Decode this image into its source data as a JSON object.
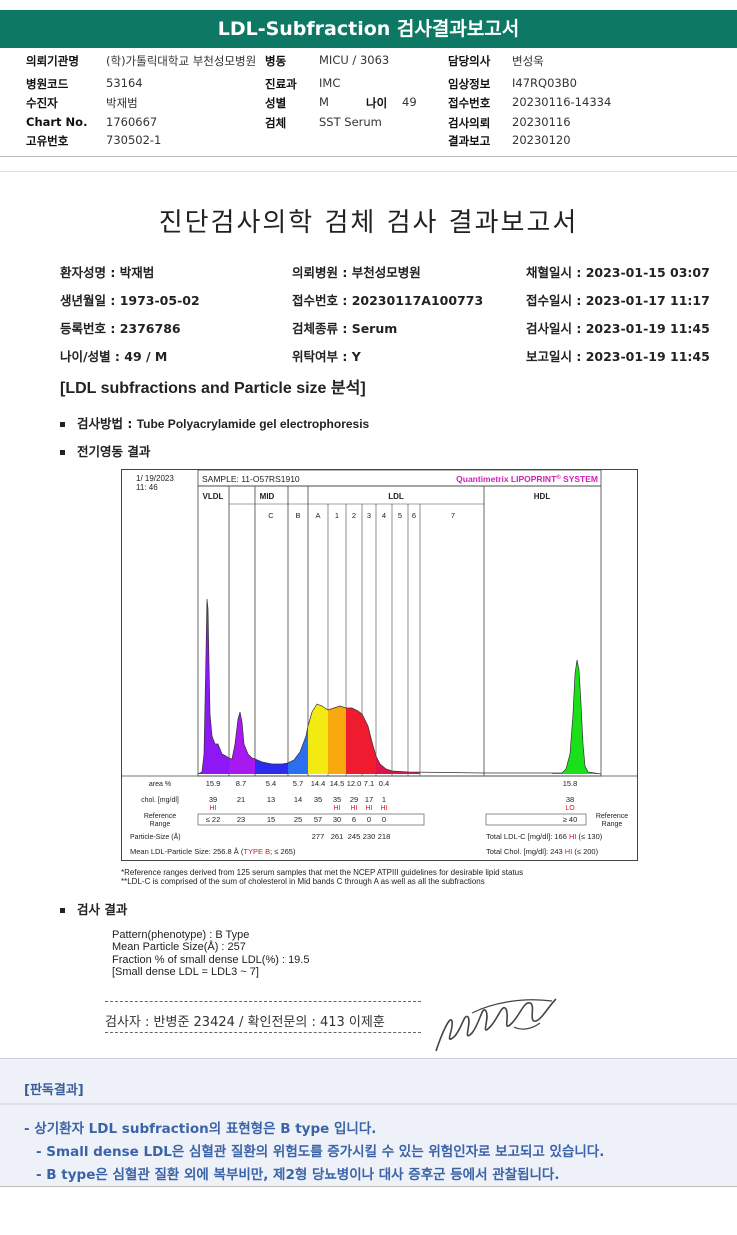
{
  "title": "LDL-Subfraction 검사결과보고서",
  "header": {
    "rows": [
      [
        {
          "l": "의뢰기관명",
          "v": "(학)가톨릭대학교 부천성모병원"
        },
        {
          "l": "병동",
          "v": "MICU / 3063"
        },
        {
          "l": "담당의사",
          "v": "변성욱"
        }
      ],
      [
        {
          "l": "병원코드",
          "v": "53164"
        },
        {
          "l": "진료과",
          "v": "IMC"
        },
        {
          "l": "임상정보",
          "v": "I47RQ03B0"
        }
      ],
      [
        {
          "l": "수진자",
          "v": "박재범"
        },
        {
          "l": "성별",
          "v": "M"
        },
        {
          "l": "나이",
          "v": "49"
        },
        {
          "l": "접수번호",
          "v": "20230116-14334"
        }
      ],
      [
        {
          "l": "Chart No.",
          "v": "1760667"
        },
        {
          "l": "검체",
          "v": "SST Serum"
        },
        {
          "l": "검사의뢰",
          "v": "20230116"
        }
      ],
      [
        {
          "l": "고유번호",
          "v": "730502-1"
        },
        {
          "l": "결과보고",
          "v": "20230120"
        }
      ]
    ]
  },
  "report": {
    "title": "진단검사의학 검체 검사 결과보고서",
    "patient": [
      [
        "환자성명 : 박재범",
        "의뢰병원 : 부천성모병원",
        "채혈일시 : 2023-01-15 03:07"
      ],
      [
        "생년월일 : 1973-05-02",
        "접수번호 : 20230117A100773",
        "접수일시 : 2023-01-17 11:17"
      ],
      [
        "등록번호 : 2376786",
        "검체종류 : Serum",
        "검사일시 : 2023-01-19 11:45"
      ],
      [
        "나이/성별 : 49 / M",
        "위탁여부 : Y",
        "보고일시 : 2023-01-19 11:45"
      ]
    ],
    "section_title": "[LDL subfractions and Particle size 분석]",
    "method_label": "검사방법 : ",
    "method_value": "Tube Polyacrylamide gel electrophoresis",
    "electro_label": "전기영동 결과",
    "result_label": "검사 결과",
    "results": [
      "Pattern(phenotype) : B Type",
      "Mean Particle Size(Å) : 257",
      "Fraction % of small dense LDL(%) : 19.5",
      "[Small dense LDL = LDL3 ~ 7]"
    ],
    "inspector": "검사자 : 반병준  23424  /  확인전문의 : 413  이제훈",
    "footnotes": [
      "*Reference ranges derived from 125 serum samples that met the NCEP ATPIII guidelines for desirable lipid status",
      "**LDL-C is comprised of the sum of cholesterol in Mid bands C through A as well as all the subfractions"
    ]
  },
  "chart_data": {
    "type": "area",
    "date": "1/ 19/2023",
    "time": "11: 46",
    "sample": "SAMPLE:   11-O57RS1910",
    "brand": "Quantimetrix LIPOPRINT",
    "brand_sup": "®",
    "brand_suffix": " SYSTEM",
    "groups": [
      "VLDL",
      "MID",
      "LDL",
      "HDL"
    ],
    "bands": [
      "C",
      "B",
      "A",
      "1",
      "2",
      "3",
      "4",
      "5",
      "6",
      "7"
    ],
    "row_labels": {
      "area": "area %",
      "chol": "chol. [mg/dl]",
      "ref": "Reference Range",
      "psize": "Particle-Size (Å)",
      "mean": "Mean LDL-Particle Size:"
    },
    "columns": [
      "VLDL",
      "C",
      "B",
      "A",
      "1",
      "2",
      "3",
      "4",
      "5"
    ],
    "area": [
      "15.9",
      "8.7",
      "5.4",
      "5.7",
      "14.4",
      "14.5",
      "12.0",
      "7.1",
      "0.4"
    ],
    "chol": [
      "39",
      "21",
      "13",
      "14",
      "35",
      "35",
      "29",
      "17",
      "1"
    ],
    "flags": [
      "HI",
      "",
      "",
      "",
      "",
      "HI",
      "HI",
      "HI",
      "HI"
    ],
    "ref": [
      "≤ 22",
      "23",
      "15",
      "25",
      "57",
      "30",
      "6",
      "0",
      "0"
    ],
    "psize": [
      "",
      "",
      "",
      "",
      "277",
      "261",
      "245",
      "230",
      "218"
    ],
    "mean_value": "256.8 Å",
    "mean_type": "TYPE B",
    "mean_ref": "; ≤ 265)",
    "hdl": {
      "area": "15.8",
      "chol": "38",
      "flag": "LO",
      "ref": "≥ 40"
    },
    "total_ldl": {
      "label": "Total LDL-C [mg/dl]:",
      "value": "166",
      "flag": "HI",
      "ref": "(≤ 130)"
    },
    "total_chol": {
      "label": "Total Chol. [mg/dl]:",
      "value": "243",
      "flag": "HI",
      "ref": "(≤ 200)"
    },
    "ref_side": "Reference Range",
    "colors": {
      "vldl": "#8e17f5",
      "c": "#a818f0",
      "b": "#2c2cf0",
      "a": "#2a6ff0",
      "ldl1": "#f2ea10",
      "ldl2": "#f7a80c",
      "ldl3": "#ee1c2e",
      "ldl4": "#e0124a",
      "hdl": "#19e019",
      "flag": "#e0102a",
      "brand": "#d31fb5"
    }
  },
  "opinion": {
    "title": "[판독결과]",
    "lines": [
      "- 상기환자 LDL subfraction의 표현형은 B type 입니다.",
      "-  Small dense LDL은 심혈관 질환의 위험도를 증가시킬 수 있는 위험인자로 보고되고 있습니다.",
      "-  B type은 심혈관 질환 외에 복부비만, 제2형 당뇨병이나 대사 증후군 등에서 관찰됩니다."
    ]
  }
}
